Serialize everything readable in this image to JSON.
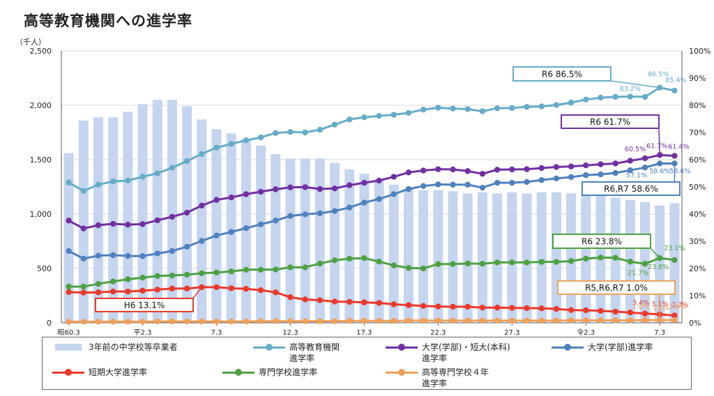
{
  "title": "高等教育機関への進学率",
  "chart_data": {
    "type": "bar+line",
    "y_left_unit": "（千人）",
    "y_left_ticks": [
      "0",
      "500",
      "1,000",
      "1,500",
      "2,000",
      "2,500"
    ],
    "y_left_lim": [
      0,
      2500
    ],
    "y_right_ticks": [
      "0%",
      "10%",
      "20%",
      "30%",
      "40%",
      "50%",
      "60%",
      "70%",
      "80%",
      "90%",
      "100%"
    ],
    "y_right_lim": [
      0,
      100
    ],
    "x_tick_labels": [
      {
        "i": 0,
        "label": "昭60.3"
      },
      {
        "i": 5,
        "label": "平2.3"
      },
      {
        "i": 10,
        "label": "7.3"
      },
      {
        "i": 15,
        "label": "12.3"
      },
      {
        "i": 20,
        "label": "17.3"
      },
      {
        "i": 25,
        "label": "22.3"
      },
      {
        "i": 30,
        "label": "27.3"
      },
      {
        "i": 35,
        "label": "令2.3"
      },
      {
        "i": 40,
        "label": "7.3"
      }
    ],
    "bars": {
      "name": "3年前の中学校等卒業者",
      "color": "#c5d5ef",
      "values": [
        1560,
        1860,
        1890,
        1890,
        1940,
        2010,
        2050,
        2050,
        1990,
        1870,
        1780,
        1740,
        1690,
        1630,
        1550,
        1510,
        1510,
        1510,
        1470,
        1410,
        1370,
        1320,
        1270,
        1230,
        1220,
        1220,
        1210,
        1190,
        1200,
        1190,
        1200,
        1190,
        1200,
        1200,
        1190,
        1180,
        1170,
        1150,
        1130,
        1110,
        1080,
        1100
      ]
    },
    "series": [
      {
        "name": "高等教育機関進学率",
        "color": "#67acc7",
        "values": [
          51.6,
          48.5,
          50.8,
          52.0,
          52.3,
          53.7,
          55.0,
          57.0,
          59.5,
          62.1,
          64.4,
          65.8,
          67.1,
          68.2,
          69.8,
          70.2,
          70.0,
          71.0,
          72.9,
          74.8,
          75.6,
          76.1,
          76.5,
          77.2,
          78.4,
          79.1,
          78.8,
          78.6,
          77.8,
          78.9,
          79.0,
          79.4,
          79.6,
          80.1,
          81.0,
          82.1,
          82.8,
          83.1,
          83.2,
          83.1,
          86.5,
          85.4
        ]
      },
      {
        "name": "大学(学部)・短大(本科)進学率",
        "color": "#7030a0",
        "values": [
          37.6,
          34.7,
          35.9,
          36.4,
          36.1,
          36.3,
          37.7,
          39.0,
          40.5,
          43.1,
          45.2,
          46.1,
          47.3,
          48.2,
          49.1,
          49.8,
          49.9,
          49.2,
          49.4,
          50.6,
          51.5,
          52.3,
          53.7,
          55.3,
          56.0,
          56.5,
          56.4,
          55.8,
          54.8,
          56.3,
          56.4,
          56.5,
          56.9,
          57.3,
          57.5,
          57.9,
          58.3,
          58.6,
          59.6,
          60.5,
          61.7,
          61.4
        ]
      },
      {
        "name": "大学(学部)進学率",
        "color": "#4f81bd",
        "values": [
          26.4,
          23.6,
          24.7,
          24.9,
          24.6,
          24.5,
          25.5,
          26.4,
          28.0,
          30.1,
          32.1,
          33.4,
          34.8,
          36.2,
          37.6,
          39.3,
          39.9,
          40.3,
          41.1,
          42.4,
          44.2,
          45.5,
          47.3,
          49.2,
          50.3,
          50.9,
          50.8,
          50.8,
          49.7,
          51.5,
          51.5,
          51.8,
          52.5,
          53.1,
          53.6,
          54.3,
          54.6,
          55.1,
          56.1,
          57.1,
          58.6,
          58.6
        ]
      },
      {
        "name": "短期大学進学率",
        "color": "#e8392c",
        "values": [
          11.3,
          11.1,
          11.2,
          11.5,
          11.5,
          11.8,
          12.2,
          12.6,
          12.6,
          13.1,
          13.1,
          12.7,
          12.5,
          12.0,
          11.2,
          9.4,
          8.6,
          8.3,
          7.8,
          7.7,
          7.5,
          7.3,
          6.8,
          6.5,
          6.2,
          6.0,
          5.9,
          5.9,
          5.6,
          5.6,
          5.5,
          5.4,
          5.3,
          5.1,
          4.7,
          4.6,
          4.4,
          4.1,
          3.8,
          3.4,
          3.1,
          2.7
        ]
      },
      {
        "name": "専門学校進学率",
        "color": "#4fa044",
        "values": [
          13.3,
          13.3,
          14.3,
          15.2,
          16.0,
          16.6,
          17.2,
          17.4,
          17.7,
          18.2,
          18.5,
          18.9,
          19.5,
          19.5,
          19.6,
          20.4,
          20.4,
          21.8,
          23.0,
          23.6,
          23.8,
          22.5,
          21.1,
          20.2,
          20.0,
          21.6,
          21.6,
          21.8,
          21.7,
          22.2,
          22.2,
          22.2,
          22.4,
          22.4,
          22.7,
          23.6,
          24.0,
          23.9,
          22.5,
          21.7,
          23.8,
          23.1
        ]
      },
      {
        "name": "高等専門学校4年進学率",
        "color": "#f0a058",
        "values": [
          0.4,
          0.4,
          0.4,
          0.4,
          0.4,
          0.4,
          0.5,
          0.5,
          0.5,
          0.5,
          0.5,
          0.5,
          0.5,
          0.6,
          0.6,
          0.6,
          0.6,
          0.6,
          0.6,
          0.7,
          0.7,
          0.7,
          0.7,
          0.8,
          0.8,
          0.8,
          0.8,
          0.8,
          0.8,
          0.8,
          0.8,
          0.8,
          0.8,
          0.8,
          0.9,
          0.9,
          0.9,
          0.9,
          0.9,
          1.0,
          1.0,
          1.0
        ]
      }
    ],
    "data_labels": [
      {
        "s": 0,
        "i": 38,
        "text": "83.2%"
      },
      {
        "s": 0,
        "i": 40,
        "text": "86.5%"
      },
      {
        "s": 0,
        "i": 41,
        "text": "85.4%"
      },
      {
        "s": 1,
        "i": 39,
        "text": "60.5%"
      },
      {
        "s": 1,
        "i": 40,
        "text": "61.7%"
      },
      {
        "s": 1,
        "i": 41,
        "text": "61.4%"
      },
      {
        "s": 2,
        "i": 39,
        "text": "57.1%"
      },
      {
        "s": 2,
        "i": 40,
        "text": "58.6%"
      },
      {
        "s": 2,
        "i": 41,
        "text": "58.6%"
      },
      {
        "s": 3,
        "i": 39,
        "text": "3.4%"
      },
      {
        "s": 3,
        "i": 40,
        "text": "3.1%"
      },
      {
        "s": 3,
        "i": 41,
        "text": "2.7%"
      },
      {
        "s": 4,
        "i": 39,
        "text": "21.7%"
      },
      {
        "s": 4,
        "i": 40,
        "text": "23.8%"
      },
      {
        "s": 4,
        "i": 41,
        "text": "23.1%"
      },
      {
        "s": 5,
        "i": 39,
        "text": "1.0%"
      },
      {
        "s": 5,
        "i": 40,
        "text": "1.0%"
      },
      {
        "s": 5,
        "i": 41,
        "text": "1.0%"
      }
    ],
    "callouts": [
      {
        "text": "R6  86.5%",
        "border": "#67acc7",
        "s": 0,
        "i": 40
      },
      {
        "text": "R6  61.7%",
        "border": "#7030a0",
        "s": 1,
        "i": 40
      },
      {
        "text": "R6,R7  58.6%",
        "border": "#4f81bd",
        "s": 2,
        "i": 41
      },
      {
        "text": "R6  23.8%",
        "border": "#4fa044",
        "s": 4,
        "i": 40
      },
      {
        "text": "R5,R6,R7  1.0%",
        "border": "#f0a058",
        "s": 5,
        "i": 40
      },
      {
        "text": "H6  13.1%",
        "border": "#e8392c",
        "s": 3,
        "i": 9
      }
    ]
  },
  "legend": [
    {
      "kind": "bar",
      "label": "3年前の中学校等卒業者",
      "color": "#c5d5ef"
    },
    {
      "kind": "line",
      "label": "高等教育機関\n進学率",
      "color": "#67acc7"
    },
    {
      "kind": "line",
      "label": "大学(学部)・短大(本科)\n進学率",
      "color": "#7030a0"
    },
    {
      "kind": "line",
      "label": "大学(学部)進学率",
      "color": "#4f81bd"
    },
    {
      "kind": "line",
      "label": "短期大学進学率",
      "color": "#e8392c"
    },
    {
      "kind": "line",
      "label": "専門学校進学率",
      "color": "#4fa044"
    },
    {
      "kind": "line",
      "label": "高等専門学校４年\n進学率",
      "color": "#f0a058"
    }
  ]
}
